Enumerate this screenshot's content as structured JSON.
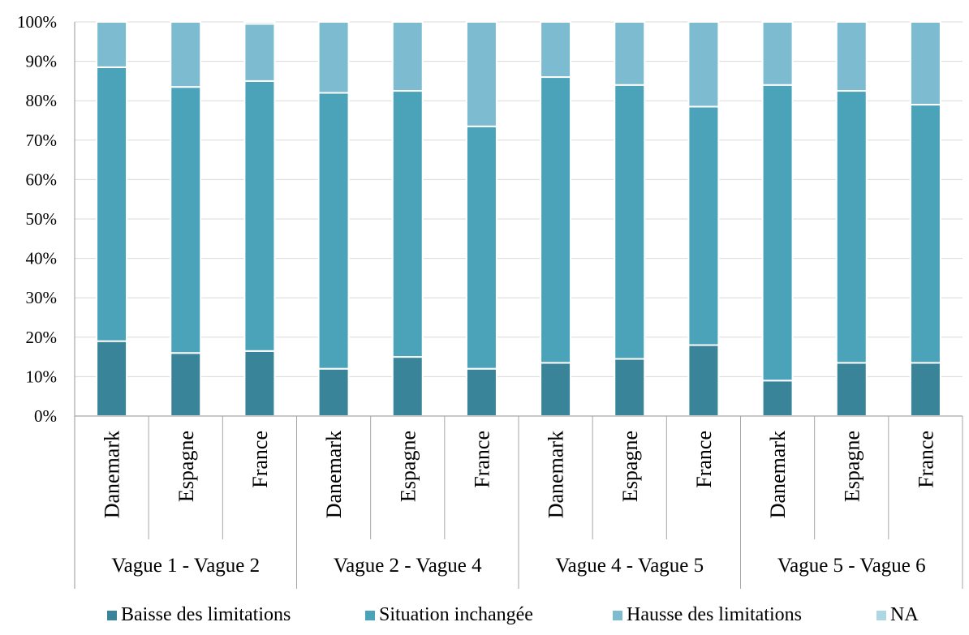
{
  "chart_data": {
    "type": "bar",
    "stacked": true,
    "percent_stacked": true,
    "title": "",
    "xlabel": "",
    "ylabel": "",
    "ylim": [
      0,
      100
    ],
    "y_ticks": [
      "0%",
      "10%",
      "20%",
      "30%",
      "40%",
      "50%",
      "60%",
      "70%",
      "80%",
      "90%",
      "100%"
    ],
    "grid": "horizontal",
    "legend_position": "bottom",
    "groups": [
      {
        "label": "Vague 1 - Vague 2",
        "categories": [
          "Danemark",
          "Espagne",
          "France"
        ]
      },
      {
        "label": "Vague 2 - Vague 4",
        "categories": [
          "Danemark",
          "Espagne",
          "France"
        ]
      },
      {
        "label": "Vague 4 - Vague 5",
        "categories": [
          "Danemark",
          "Espagne",
          "France"
        ]
      },
      {
        "label": "Vague 5 - Vague 6",
        "categories": [
          "Danemark",
          "Espagne",
          "France"
        ]
      }
    ],
    "categories": [
      "Danemark",
      "Espagne",
      "France",
      "Danemark",
      "Espagne",
      "France",
      "Danemark",
      "Espagne",
      "France",
      "Danemark",
      "Espagne",
      "France"
    ],
    "series": [
      {
        "name": "Baisse des limitations",
        "color": "#3a8499",
        "values": [
          19,
          16,
          16.5,
          12,
          15,
          12,
          13.5,
          14.5,
          18,
          9,
          13.5,
          13.5
        ]
      },
      {
        "name": "Situation inchangée",
        "color": "#4ba3ba",
        "values": [
          69.5,
          67.5,
          68.5,
          70,
          67.5,
          61.5,
          72.5,
          69.5,
          60.5,
          75,
          69,
          65.5
        ]
      },
      {
        "name": "Hausse des limitations",
        "color": "#7dbcd0",
        "values": [
          11.5,
          16.5,
          14.5,
          18,
          17.5,
          26.5,
          14,
          16,
          21.5,
          16,
          17.5,
          21
        ]
      },
      {
        "name": "NA",
        "color": "#aed7e3",
        "values": [
          0,
          0,
          0.5,
          0,
          0,
          0,
          0,
          0,
          0,
          0,
          0,
          0
        ]
      }
    ]
  }
}
